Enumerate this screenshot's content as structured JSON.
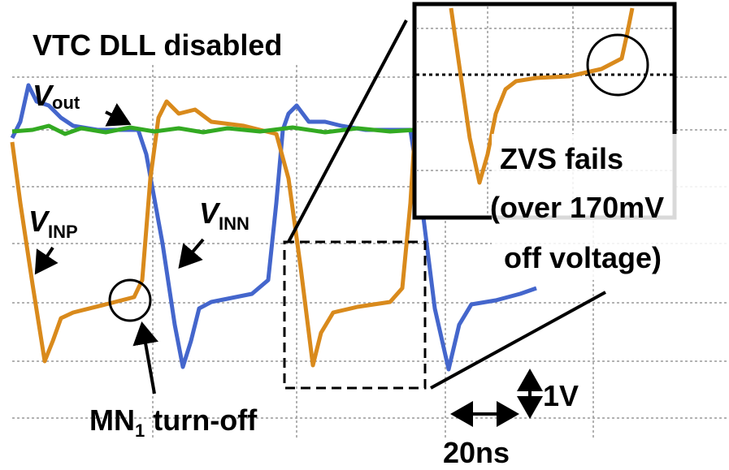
{
  "title": "VTC DLL disabled",
  "vout": {
    "main": "V",
    "sub": "out"
  },
  "vinp": {
    "main": "V",
    "sub": "INP"
  },
  "vinn": {
    "main": "V",
    "sub": "INN"
  },
  "zvs": {
    "line1": "ZVS fails",
    "line2": "(over 170mV",
    "line3": "off voltage)"
  },
  "mn": {
    "main": "MN",
    "sub": "1",
    "rest": " turn-off"
  },
  "vscale": "1V",
  "tscale": "20ns"
}
